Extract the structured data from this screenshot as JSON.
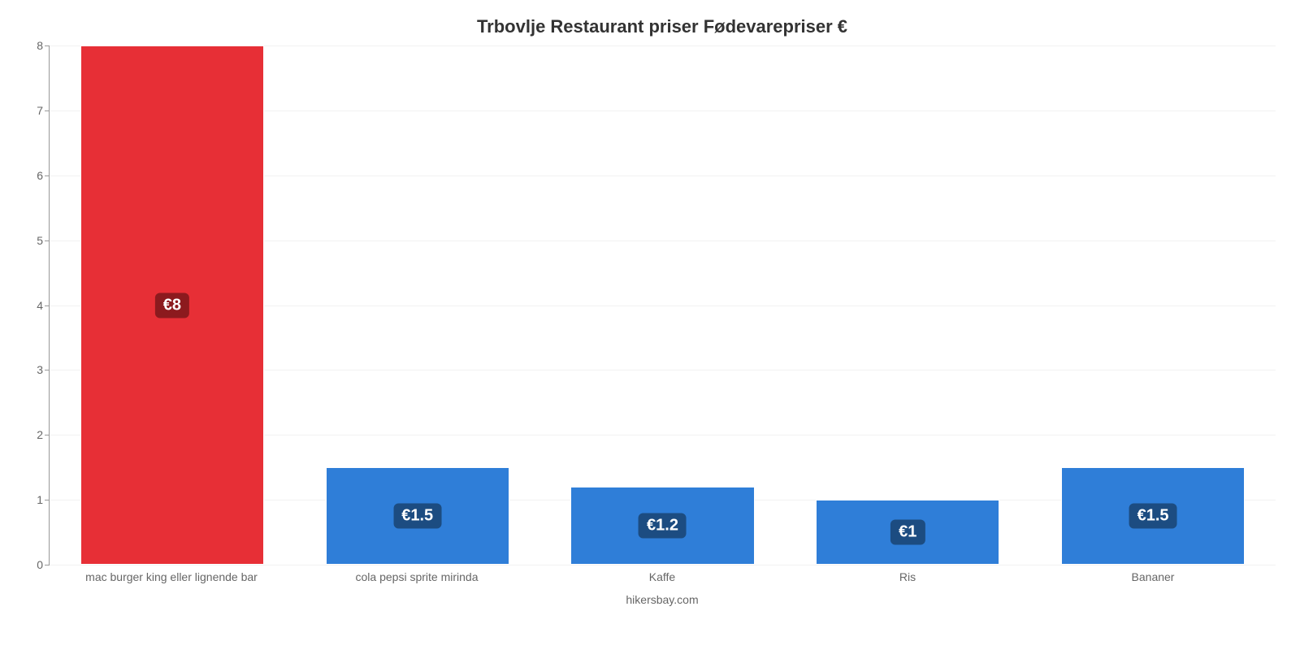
{
  "chart": {
    "type": "bar",
    "title": "Trbovlje Restaurant priser Fødevarepriser €",
    "title_fontsize": 22,
    "title_color": "#333333",
    "credit": "hikersbay.com",
    "credit_color": "#666666",
    "background_color": "#ffffff",
    "grid_color": "#f2f2f2",
    "axis_color": "#999999",
    "ylim": [
      0,
      8
    ],
    "ytick_step": 1,
    "ytick_label_color": "#666666",
    "ytick_fontsize": 14,
    "xlabel_color": "#666666",
    "xlabel_fontsize": 14,
    "bar_width_pct": 75,
    "categories": [
      "mac burger king eller lignende bar",
      "cola pepsi sprite mirinda",
      "Kaffe",
      "Ris",
      "Bananer"
    ],
    "values": [
      8,
      1.5,
      1.2,
      1,
      1.5
    ],
    "value_labels": [
      "€8",
      "€1.5",
      "€1.2",
      "€1",
      "€1.5"
    ],
    "bar_colors": [
      "#e72f36",
      "#2f7ed8",
      "#2f7ed8",
      "#2f7ed8",
      "#2f7ed8"
    ],
    "badge_colors": [
      "#8c1a1e",
      "#1c4c81",
      "#1c4c81",
      "#1c4c81",
      "#1c4c81"
    ],
    "badge_text_color": "#ffffff",
    "badge_fontsize": 20
  }
}
